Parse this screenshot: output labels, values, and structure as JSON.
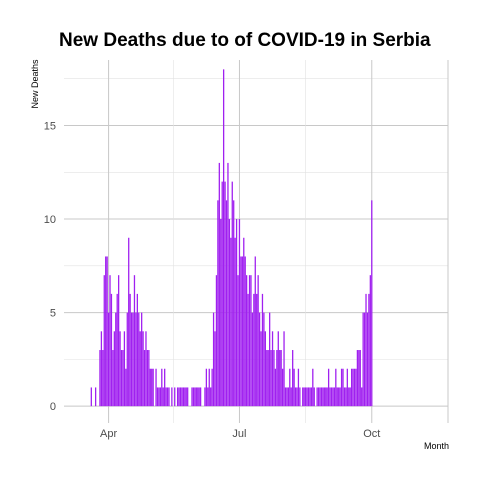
{
  "chart_data": {
    "type": "bar",
    "title": "New Deaths due to of COVID-19 in Serbia",
    "xlabel": "Month",
    "ylabel": "New Deaths",
    "x_start": "2020-03-01",
    "x_end": "2020-11-23",
    "ylim": [
      -0.9,
      18.5
    ],
    "yticks": [
      0,
      5,
      10,
      15
    ],
    "xticks": [
      {
        "label": "Apr",
        "date": "2020-04-01"
      },
      {
        "label": "Jul",
        "date": "2020-07-01"
      },
      {
        "label": "Oct",
        "date": "2020-10-01"
      }
    ],
    "x_minor": [
      "2020-05-16",
      "2020-08-16"
    ],
    "grid": true,
    "bar_color": "#a020f0",
    "series": [
      {
        "start_date": "2020-03-20",
        "values": [
          1,
          0,
          0,
          1,
          0,
          0,
          3,
          4,
          3,
          7,
          8,
          8,
          5,
          7,
          6,
          3,
          4,
          5,
          6,
          7,
          4,
          3,
          3,
          4,
          2,
          5,
          9,
          6,
          5,
          5,
          7,
          5,
          6,
          5,
          4,
          5,
          4,
          3,
          4,
          3,
          3,
          2,
          2,
          2,
          0,
          2,
          1,
          1,
          1,
          2,
          1,
          2,
          1,
          1,
          1,
          0,
          1,
          0,
          1,
          0,
          1,
          1,
          1,
          1,
          1,
          1,
          1,
          1,
          0,
          0,
          1,
          1,
          1,
          1,
          1,
          1,
          1,
          0,
          0,
          1,
          2,
          1,
          2,
          1,
          2,
          5,
          4,
          7,
          11,
          13,
          10,
          12,
          18,
          12,
          11,
          13,
          10,
          9,
          12,
          11,
          9,
          10,
          7,
          10,
          8,
          8,
          9,
          8,
          7,
          6,
          7,
          7,
          5,
          6,
          8,
          6,
          7,
          5,
          4,
          6,
          5,
          4,
          3,
          3,
          5,
          3,
          4,
          3,
          2,
          3,
          4,
          3,
          3,
          2,
          4,
          1,
          1,
          1,
          2,
          1,
          3,
          2,
          1,
          1,
          2,
          1,
          0,
          1,
          1,
          1,
          1,
          1,
          1,
          1,
          2,
          1,
          0,
          1,
          1,
          1,
          1,
          1,
          1,
          1,
          1,
          2,
          1,
          1,
          1,
          1,
          2,
          1,
          1,
          1,
          2,
          2,
          1,
          1,
          2,
          1,
          1,
          2,
          2,
          2,
          2,
          3,
          3,
          3,
          1,
          5,
          5,
          6,
          5,
          6,
          7,
          11
        ]
      }
    ]
  }
}
